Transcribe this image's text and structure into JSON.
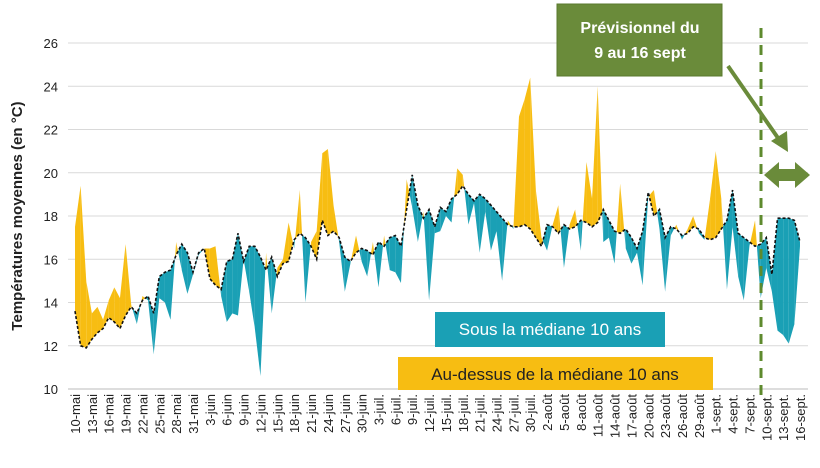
{
  "chart_data": {
    "type": "area-diff",
    "y_label": "Températures moyennes (en °C)",
    "ylim": [
      10,
      26
    ],
    "yticks": [
      10,
      12,
      14,
      16,
      18,
      20,
      22,
      24,
      26
    ],
    "grid": true,
    "categories": [
      "10-mai",
      null,
      null,
      "13-mai",
      null,
      null,
      "16-mai",
      null,
      null,
      "19-mai",
      null,
      null,
      "22-mai",
      null,
      null,
      "25-mai",
      null,
      null,
      "28-mai",
      null,
      null,
      "31-mai",
      null,
      null,
      "3-juin",
      null,
      null,
      "6-juin",
      null,
      null,
      "9-juin",
      null,
      null,
      "12-juin",
      null,
      null,
      "15-juin",
      null,
      null,
      "18-juin",
      null,
      null,
      "21-juin",
      null,
      null,
      "24-juin",
      null,
      null,
      "27-juin",
      null,
      null,
      "30-juin",
      null,
      null,
      "3-juil.",
      null,
      null,
      "6-juil.",
      null,
      null,
      "9-juil.",
      null,
      null,
      "12-juil.",
      null,
      null,
      "15-juil.",
      null,
      null,
      "18-juil.",
      null,
      null,
      "21-juil.",
      null,
      null,
      "24-juil.",
      null,
      null,
      "27-juil.",
      null,
      null,
      "30-juil.",
      null,
      null,
      "2-août",
      null,
      null,
      "5-août",
      null,
      null,
      "8-août",
      null,
      null,
      "11-août",
      null,
      null,
      "14-août",
      null,
      null,
      "17-août",
      null,
      null,
      "20-août",
      null,
      null,
      "23-août",
      null,
      null,
      "26-août",
      null,
      null,
      "29-août",
      null,
      null,
      "1-sept.",
      null,
      null,
      "4-sept.",
      null,
      null,
      "7-sept.",
      null,
      null,
      "10-sept.",
      null,
      null,
      "13-sept.",
      null,
      null,
      "16-sept."
    ],
    "values": [
      17.5,
      19.4,
      15.0,
      13.5,
      13.8,
      13.2,
      14.1,
      14.7,
      14.2,
      16.7,
      13.9,
      13.0,
      14.3,
      14.1,
      11.6,
      14.2,
      14.0,
      13.2,
      16.8,
      15.5,
      14.4,
      15.3,
      16.2,
      16.5,
      16.5,
      16.6,
      14.3,
      13.1,
      13.5,
      13.4,
      16.0,
      14.5,
      12.8,
      10.6,
      16.3,
      13.5,
      15.6,
      16.0,
      17.7,
      16.5,
      19.2,
      14.0,
      16.8,
      17.3,
      20.9,
      21.1,
      18.5,
      16.8,
      14.5,
      15.8,
      17.1,
      15.9,
      15.2,
      16.8,
      14.7,
      17.1,
      15.5,
      15.4,
      14.9,
      19.7,
      18.4,
      16.8,
      18.2,
      14.1,
      17.2,
      17.3,
      18.0,
      17.7,
      20.2,
      19.9,
      17.6,
      18.6,
      16.3,
      18.2,
      16.4,
      17.3,
      15.0,
      17.8,
      17.4,
      22.6,
      23.4,
      24.4,
      19.2,
      17.0,
      16.4,
      17.6,
      18.5,
      15.6,
      17.6,
      18.3,
      16.4,
      20.5,
      18.8,
      24.0,
      16.8,
      17.0,
      15.8,
      19.5,
      16.5,
      15.8,
      16.3,
      14.8,
      18.9,
      19.2,
      17.4,
      14.5,
      17.1,
      17.6,
      16.9,
      17.4,
      18.0,
      17.2,
      16.9,
      18.8,
      21.0,
      18.8,
      14.6,
      17.5,
      15.2,
      14.1,
      16.6,
      17.8,
      14.2,
      15.6,
      14.5,
      12.7,
      12.5,
      12.1,
      13.0,
      16.6
    ],
    "median": [
      13.6,
      12.0,
      11.9,
      12.3,
      12.6,
      12.8,
      13.3,
      13.1,
      12.8,
      13.4,
      13.8,
      13.5,
      14.1,
      14.3,
      13.5,
      15.2,
      15.4,
      15.5,
      16.2,
      16.7,
      16.3,
      15.4,
      16.3,
      16.5,
      15.1,
      14.8,
      14.6,
      15.9,
      16.0,
      17.2,
      15.9,
      16.6,
      16.6,
      16.1,
      15.5,
      16.1,
      15.2,
      15.8,
      15.9,
      16.9,
      17.2,
      17.0,
      16.6,
      16.0,
      17.8,
      17.1,
      17.3,
      17.0,
      16.1,
      15.9,
      16.3,
      16.5,
      16.4,
      16.2,
      16.8,
      16.6,
      17.0,
      17.1,
      16.6,
      18.3,
      19.9,
      18.5,
      17.9,
      18.3,
      17.5,
      18.4,
      18.2,
      18.8,
      19.0,
      19.4,
      19.0,
      18.7,
      19.0,
      18.8,
      18.5,
      18.2,
      17.9,
      17.6,
      17.5,
      17.5,
      17.6,
      17.4,
      17.0,
      16.6,
      17.6,
      17.5,
      17.2,
      17.6,
      17.4,
      17.5,
      17.8,
      17.7,
      17.5,
      17.7,
      18.3,
      17.8,
      17.3,
      17.2,
      17.4,
      17.0,
      16.5,
      17.3,
      19.1,
      18.0,
      18.3,
      17.0,
      17.5,
      17.4,
      17.1,
      17.2,
      17.5,
      17.4,
      17.0,
      16.9,
      17.0,
      17.4,
      17.8,
      19.2,
      17.2,
      17.0,
      16.8,
      16.6,
      16.7,
      17.0,
      15.3,
      17.9,
      17.9,
      17.9,
      17.8,
      16.8
    ],
    "above_color": "#f7bd12",
    "below_color": "#1aa0b5",
    "below_label": "Sous la médiane 10 ans",
    "above_label": "Au-dessus de la médiane 10 ans",
    "forecast_label": [
      "Prévisionnel du",
      "9 au 16 sept"
    ]
  }
}
